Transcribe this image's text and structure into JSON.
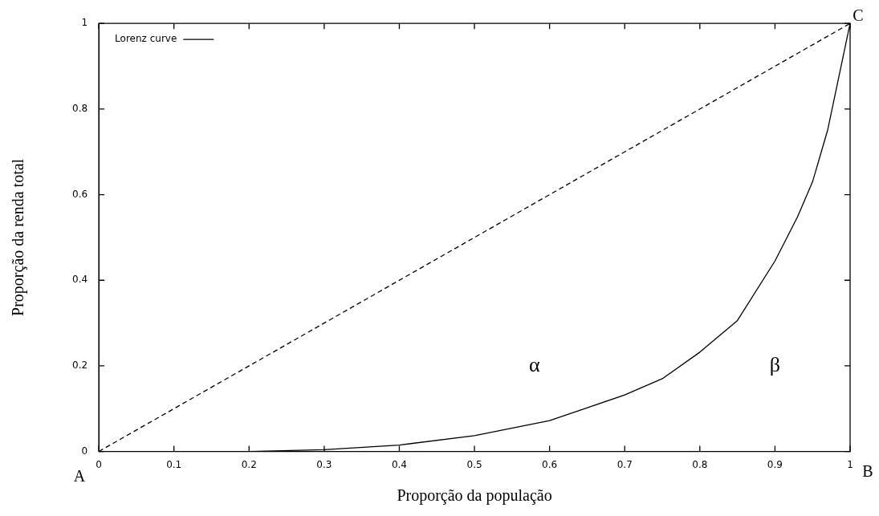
{
  "chart_data": {
    "type": "line",
    "xlabel": "Proporção da população",
    "ylabel": "Proporção da renda total",
    "xlim": [
      0,
      1
    ],
    "ylim": [
      0,
      1
    ],
    "xticks": [
      0,
      0.1,
      0.2,
      0.3,
      0.4,
      0.5,
      0.6,
      0.7,
      0.8,
      0.9,
      1
    ],
    "yticks": [
      0,
      0.2,
      0.4,
      0.6,
      0.8,
      1
    ],
    "grid": false,
    "legend": "top left",
    "marker": "none",
    "series": [
      {
        "name": "Lorenz curve",
        "color": "#000000",
        "line_style": "solid",
        "x": [
          0,
          0.1,
          0.2,
          0.3,
          0.4,
          0.5,
          0.6,
          0.7,
          0.75,
          0.8,
          0.85,
          0.9,
          0.93,
          0.95,
          0.97,
          1
        ],
        "values": [
          0,
          0,
          0,
          0.004,
          0.015,
          0.037,
          0.072,
          0.132,
          0.17,
          0.232,
          0.306,
          0.445,
          0.548,
          0.63,
          0.75,
          1
        ]
      },
      {
        "color": "#000000",
        "line_style": "dashed",
        "x": [
          0,
          1
        ],
        "values": [
          0,
          1
        ]
      }
    ],
    "annotations": [
      {
        "text": "A",
        "x": 0,
        "y": 0
      },
      "B",
      {
        "text": "C",
        "x": 1,
        "y": 1
      },
      "α",
      "β"
    ]
  }
}
